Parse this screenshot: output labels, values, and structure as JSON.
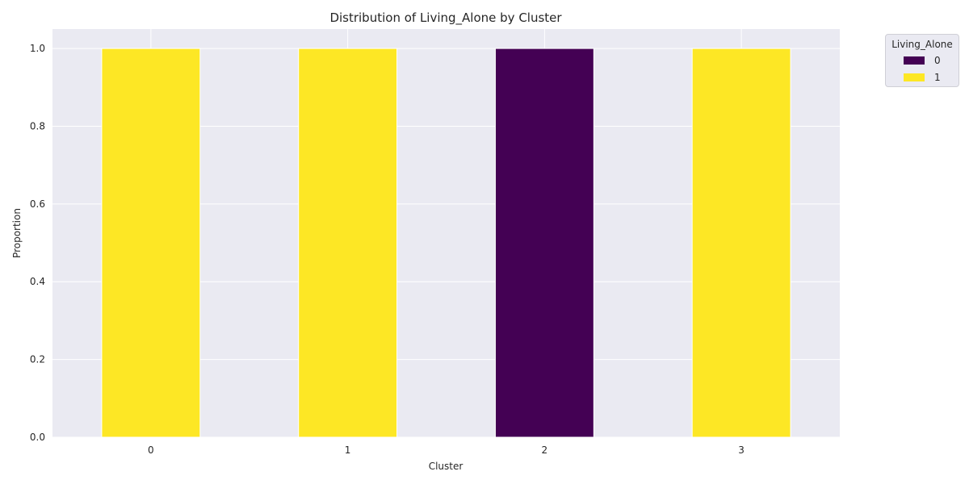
{
  "chart_data": {
    "type": "bar",
    "stacked": true,
    "title": "Distribution of Living_Alone by Cluster",
    "xlabel": "Cluster",
    "ylabel": "Proportion",
    "categories": [
      "0",
      "1",
      "2",
      "3"
    ],
    "ylim": [
      0,
      1.05
    ],
    "yticks": [
      "0.0",
      "0.2",
      "0.4",
      "0.6",
      "0.8",
      "1.0"
    ],
    "grid": true,
    "legend": {
      "title": "Living_Alone",
      "placement": "outside top-right"
    },
    "series": [
      {
        "name": "0",
        "color": "#440154",
        "values": [
          0,
          0,
          1,
          0
        ]
      },
      {
        "name": "1",
        "color": "#fde725",
        "values": [
          1,
          1,
          0,
          1
        ]
      }
    ]
  }
}
